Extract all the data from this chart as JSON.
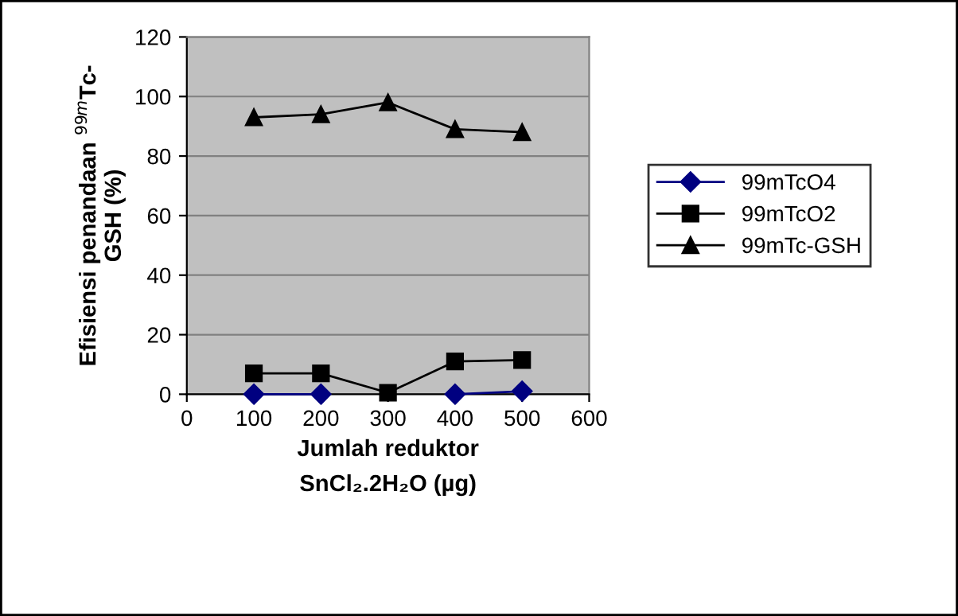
{
  "chart_data": {
    "type": "line",
    "ylabel": "Efisiensi penandaan $^{99m}$Tc-\nGSH (%)",
    "xlabel": "Jumlah reduktor\nSnCl₂.2H₂O (µg)",
    "x": [
      100,
      200,
      300,
      400,
      500
    ],
    "xlim": [
      0,
      600
    ],
    "xticks": [
      0,
      100,
      200,
      300,
      400,
      500,
      600
    ],
    "ylim": [
      0,
      120
    ],
    "yticks": [
      0,
      20,
      40,
      60,
      80,
      100,
      120
    ],
    "grid": "y",
    "legend": "right",
    "line_style": "solid",
    "series": [
      {
        "name": "99mTcO4",
        "color": "#000080",
        "marker": "diamond",
        "values": [
          0,
          0,
          null,
          0,
          1
        ]
      },
      {
        "name": "99mTcO2",
        "color": "#000000",
        "marker": "square",
        "values": [
          7,
          7,
          0.5,
          11,
          11.5
        ]
      },
      {
        "name": "99mTc-GSH",
        "color": "#000000",
        "marker": "triangle",
        "values": [
          93,
          94,
          98,
          89,
          88
        ]
      }
    ]
  }
}
